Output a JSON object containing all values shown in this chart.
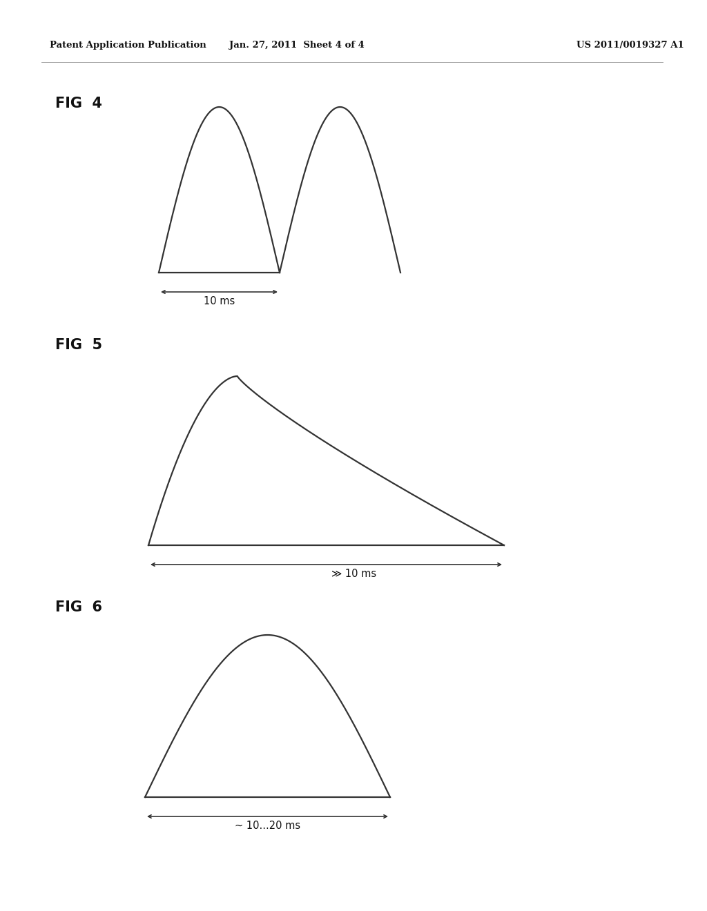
{
  "header_left": "Patent Application Publication",
  "header_center": "Jan. 27, 2011  Sheet 4 of 4",
  "header_right": "US 2011/0019327 A1",
  "fig4_label": "FIG  4",
  "fig5_label": "FIG  5",
  "fig6_label": "FIG  6",
  "fig4_annotation": "10 ms",
  "fig5_annotation": "≫ 10 ms",
  "fig6_annotation": "~ 10...20 ms",
  "background_color": "#ffffff",
  "line_color": "#333333",
  "text_color": "#111111",
  "header_fontsize": 9.5,
  "fig_label_fontsize": 15,
  "annotation_fontsize": 10.5
}
